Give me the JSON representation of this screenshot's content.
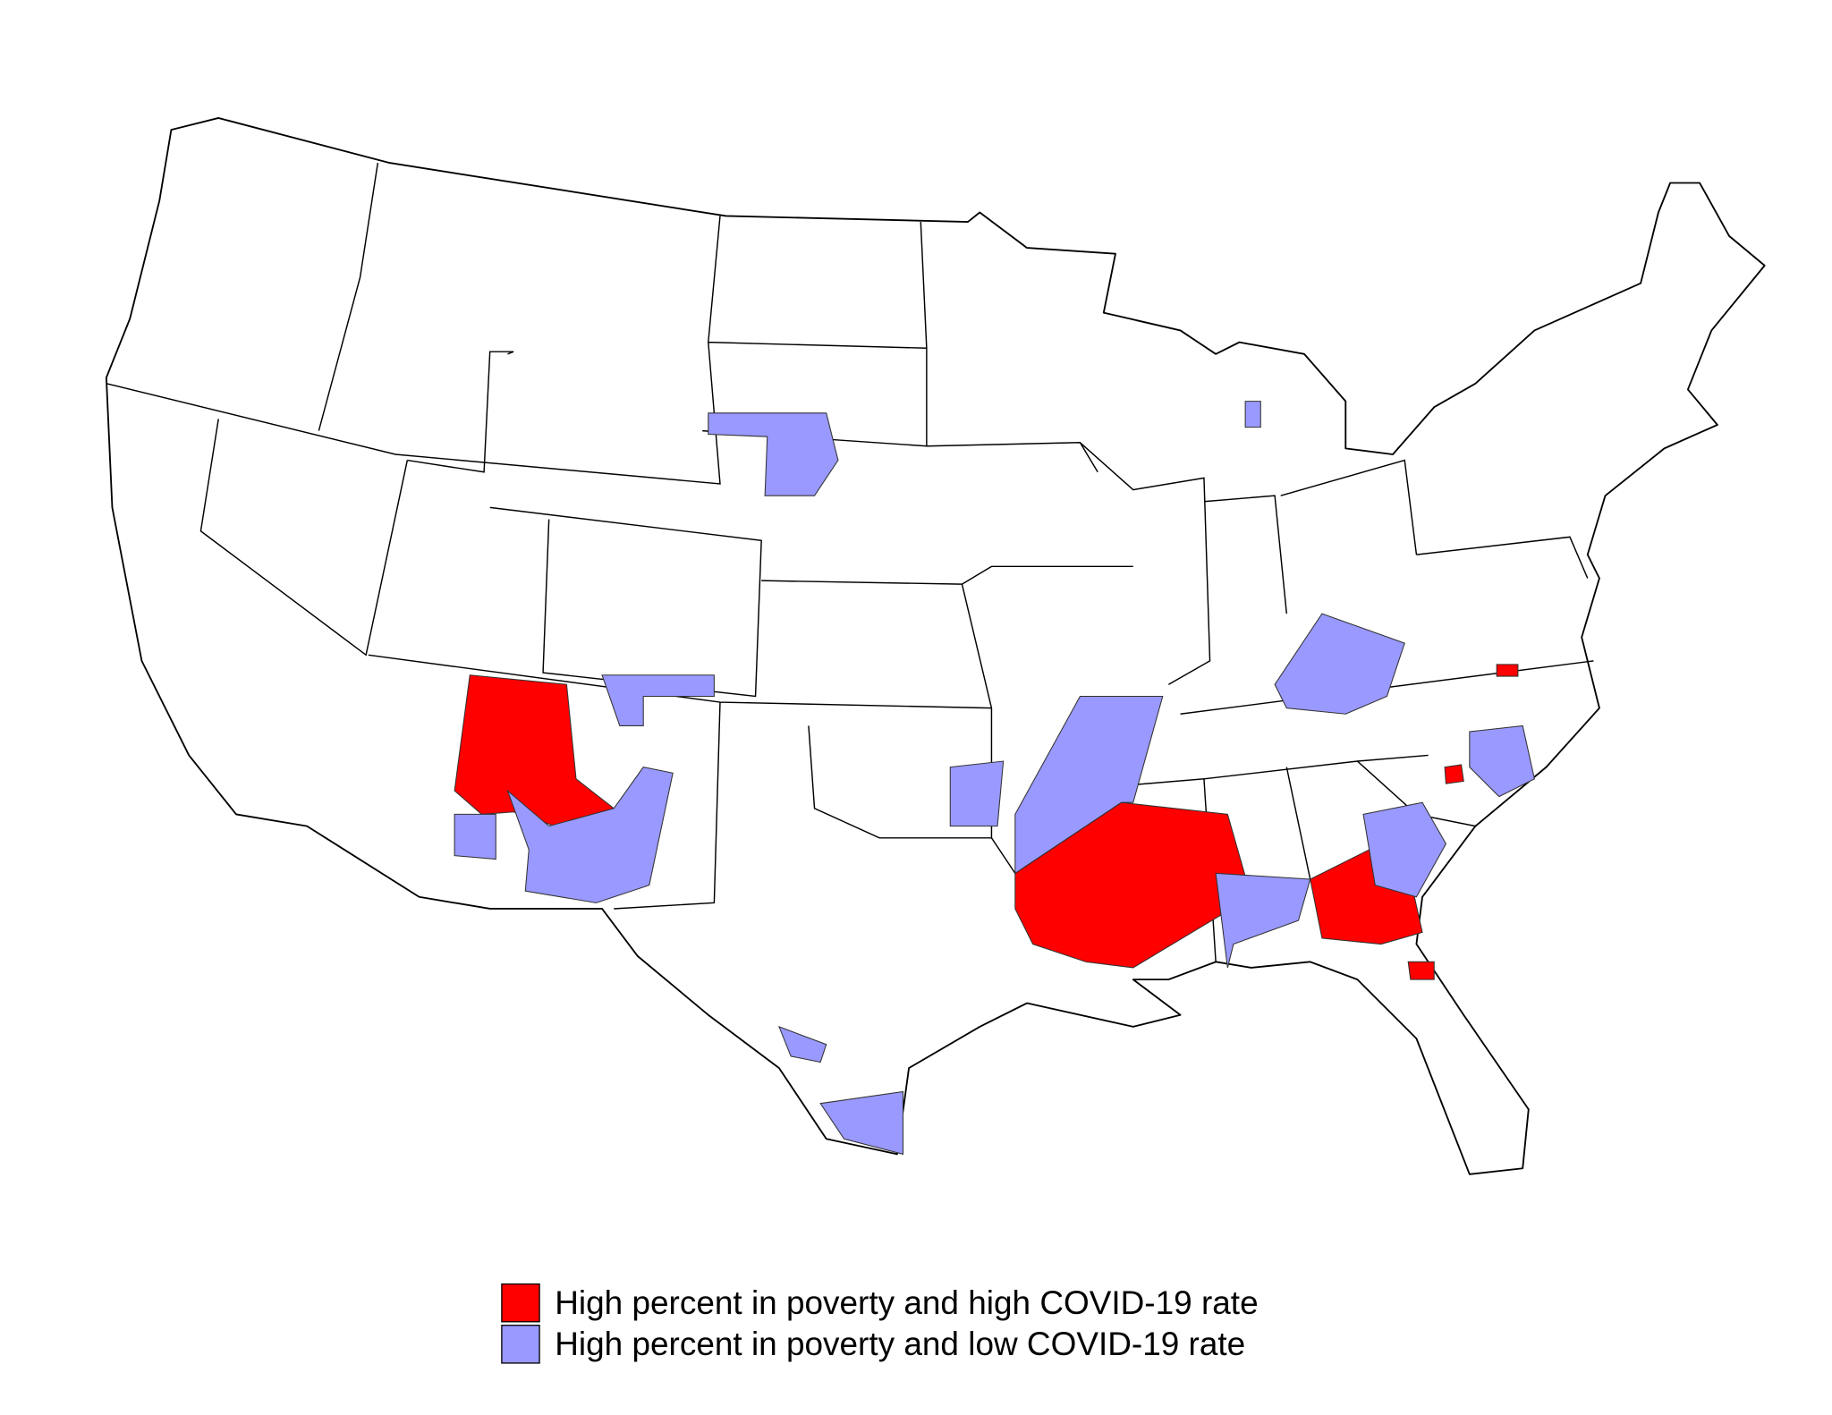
{
  "legend": {
    "items": [
      {
        "label": "High percent in poverty and high COVID-19 rate",
        "color": "#ff0000"
      },
      {
        "label": "High percent in poverty and low COVID-19 rate",
        "color": "#9999ff"
      }
    ]
  }
}
